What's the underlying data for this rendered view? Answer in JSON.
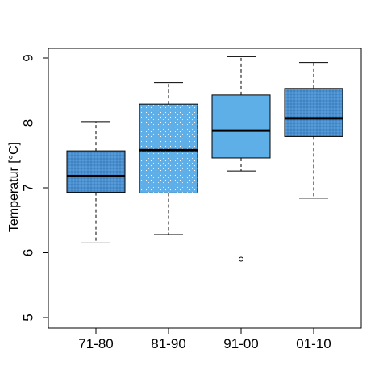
{
  "chart_data": {
    "type": "boxplot",
    "title": "",
    "xlabel": "",
    "ylabel": "Temperatur [°C]",
    "ylim": [
      5,
      9
    ],
    "yticks": [
      5,
      6,
      7,
      8,
      9
    ],
    "grid": false,
    "legend": "none",
    "categories": [
      "71-80",
      "81-90",
      "91-00",
      "01-10"
    ],
    "boxes": [
      {
        "category": "71-80",
        "min": 6.15,
        "q1": 6.93,
        "median": 7.18,
        "q3": 7.57,
        "max": 8.02,
        "outliers": [],
        "fill": "#4a90d0",
        "pattern": "dense-dots"
      },
      {
        "category": "81-90",
        "min": 6.28,
        "q1": 6.92,
        "median": 7.58,
        "q3": 8.29,
        "max": 8.62,
        "outliers": [],
        "fill": "#5eaee8",
        "pattern": "sparse-dots"
      },
      {
        "category": "91-00",
        "min": 7.26,
        "q1": 7.46,
        "median": 7.88,
        "q3": 8.43,
        "max": 9.02,
        "outliers": [
          5.9
        ],
        "fill": "#5eaee8",
        "pattern": "none"
      },
      {
        "category": "01-10",
        "min": 6.84,
        "q1": 7.79,
        "median": 8.07,
        "q3": 8.53,
        "max": 8.93,
        "outliers": [],
        "fill": "#4a90d0",
        "pattern": "dense-dots"
      }
    ]
  }
}
